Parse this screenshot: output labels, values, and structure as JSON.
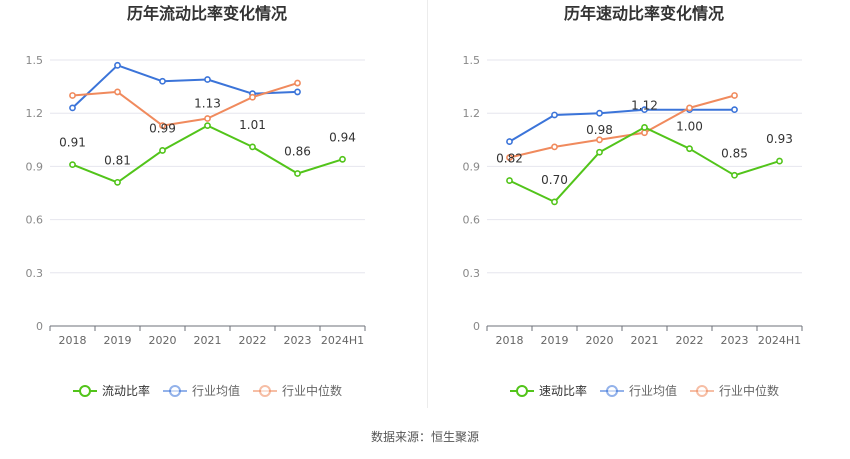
{
  "chart_data": [
    {
      "type": "line",
      "title": "历年流动比率变化情况",
      "categories": [
        "2018",
        "2019",
        "2020",
        "2021",
        "2022",
        "2023",
        "2024H1"
      ],
      "ylim": [
        0,
        1.5
      ],
      "yticks": [
        "0",
        "0.3",
        "0.6",
        "0.9",
        "1.2",
        "1.5"
      ],
      "grid": true,
      "legend_position": "bottom",
      "series": [
        {
          "name": "流动比率",
          "color": "#52c41a",
          "values": [
            0.91,
            0.81,
            0.99,
            1.13,
            1.01,
            0.86,
            0.94
          ],
          "labels": [
            "0.91",
            "0.81",
            "0.99",
            "1.13",
            "1.01",
            "0.86",
            "0.94"
          ]
        },
        {
          "name": "行业均值",
          "color": "#3b74d9",
          "values": [
            1.23,
            1.47,
            1.38,
            1.39,
            1.31,
            1.32,
            null
          ]
        },
        {
          "name": "行业中位数",
          "color": "#f08a5d",
          "values": [
            1.3,
            1.32,
            1.13,
            1.17,
            1.29,
            1.37,
            null
          ]
        }
      ]
    },
    {
      "type": "line",
      "title": "历年速动比率变化情况",
      "categories": [
        "2018",
        "2019",
        "2020",
        "2021",
        "2022",
        "2023",
        "2024H1"
      ],
      "ylim": [
        0,
        1.5
      ],
      "yticks": [
        "0",
        "0.3",
        "0.6",
        "0.9",
        "1.2",
        "1.5"
      ],
      "grid": true,
      "legend_position": "bottom",
      "series": [
        {
          "name": "速动比率",
          "color": "#52c41a",
          "values": [
            0.82,
            0.7,
            0.98,
            1.12,
            1.0,
            0.85,
            0.93
          ],
          "labels": [
            "0.82",
            "0.70",
            "0.98",
            "1.12",
            "1.00",
            "0.85",
            "0.93"
          ]
        },
        {
          "name": "行业均值",
          "color": "#3b74d9",
          "values": [
            1.04,
            1.19,
            1.2,
            1.22,
            1.22,
            1.22,
            null
          ]
        },
        {
          "name": "行业中位数",
          "color": "#f08a5d",
          "values": [
            0.95,
            1.01,
            1.05,
            1.09,
            1.23,
            1.3,
            null
          ]
        }
      ]
    }
  ],
  "footer": {
    "source": "数据来源：恒生聚源"
  }
}
